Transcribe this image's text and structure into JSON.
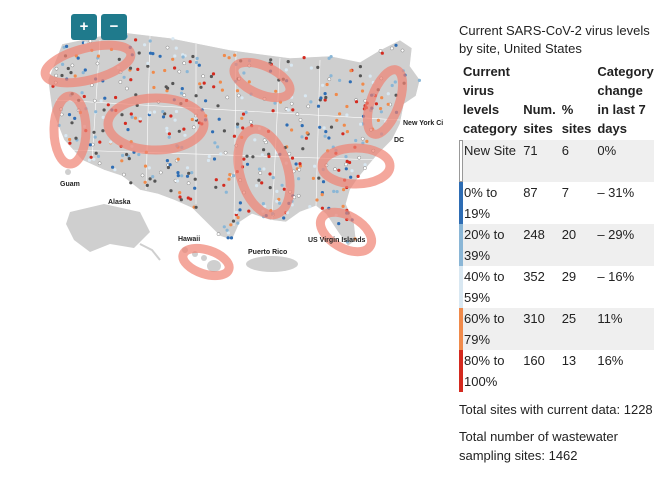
{
  "map": {
    "zoom_in_label": "+",
    "zoom_out_label": "−",
    "region_labels": {
      "guam": "Guam",
      "alaska": "Alaska",
      "hawaii": "Hawaii",
      "puerto_rico": "Puerto Rico",
      "virgin_islands": "US Virgin Islands",
      "new_york": "New York Ci",
      "dc": "DC"
    }
  },
  "legend": {
    "title": "Current SARS-CoV-2 virus levels by site, United States",
    "headers": {
      "category": "Current virus levels category",
      "num_sites": "Num. sites",
      "pct_sites": "% sites",
      "change": "Category change in last 7 days"
    },
    "rows": [
      {
        "category": "New Site",
        "num": "71",
        "pct": "6",
        "change": "0%",
        "color": "#ffffff"
      },
      {
        "category": "0% to 19%",
        "num": "87",
        "pct": "7",
        "change": "– 31%",
        "color": "#2e6db4"
      },
      {
        "category": "20% to 39%",
        "num": "248",
        "pct": "20",
        "change": "– 29%",
        "color": "#8ab6d6"
      },
      {
        "category": "40% to 59%",
        "num": "352",
        "pct": "29",
        "change": "– 16%",
        "color": "#d9e8f2"
      },
      {
        "category": "60% to 79%",
        "num": "310",
        "pct": "25",
        "change": "11%",
        "color": "#f08a4b"
      },
      {
        "category": "80% to 100%",
        "num": "160",
        "pct": "13",
        "change": "16%",
        "color": "#d42a1f"
      }
    ],
    "total_current": "Total sites with current data: 1228",
    "total_sampling": "Total number of wastewater sampling sites: 1462"
  }
}
